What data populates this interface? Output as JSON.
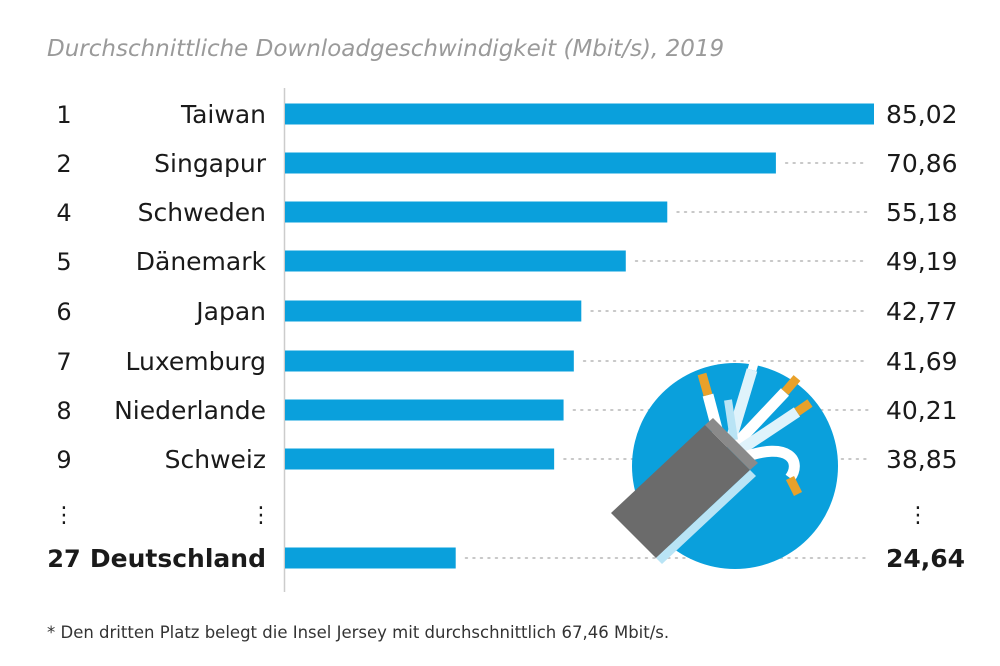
{
  "chart_data": {
    "type": "bar",
    "orientation": "horizontal",
    "title": "Durchschnittliche Downloadgeschwindigkeit (Mbit/s), 2019",
    "footnote": "* Den dritten Platz belegt die Insel Jersey mit durchschnittlich 67,46 Mbit/s.",
    "ellipsis": "⋮",
    "rows": [
      {
        "rank": "1",
        "country": "Taiwan",
        "value": 85.02,
        "value_label": "85,02",
        "highlight": false
      },
      {
        "rank": "2",
        "country": "Singapur",
        "value": 70.86,
        "value_label": "70,86",
        "highlight": false
      },
      {
        "rank": "4",
        "country": "Schweden",
        "value": 55.18,
        "value_label": "55,18",
        "highlight": false
      },
      {
        "rank": "5",
        "country": "Dänemark",
        "value": 49.19,
        "value_label": "49,19",
        "highlight": false
      },
      {
        "rank": "6",
        "country": "Japan",
        "value": 42.77,
        "value_label": "42,77",
        "highlight": false
      },
      {
        "rank": "7",
        "country": "Luxemburg",
        "value": 41.69,
        "value_label": "41,69",
        "highlight": false
      },
      {
        "rank": "8",
        "country": "Niederlande",
        "value": 40.21,
        "value_label": "40,21",
        "highlight": false
      },
      {
        "rank": "9",
        "country": "Schweiz",
        "value": 38.85,
        "value_label": "38,85",
        "highlight": false
      },
      {
        "rank": "27",
        "country": "Deutschland",
        "value": 24.64,
        "value_label": "24,64",
        "highlight": true
      }
    ],
    "xlim": [
      0,
      85.02
    ],
    "grid": false,
    "leader_lines": "dotted",
    "colors": {
      "bar": "#0aa0dc",
      "title": "#9a9a9a",
      "text": "#1a1a1a",
      "dots": "#c8c8c8",
      "axis": "#cccccc",
      "cable_jacket": "#6b6b6b",
      "wire_tip": "#e9a12a",
      "circle": "#0aa0dc"
    }
  }
}
